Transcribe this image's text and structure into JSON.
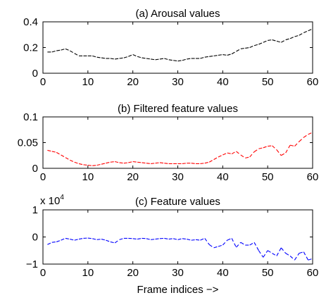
{
  "chart_data": [
    {
      "type": "line",
      "title": "(a) Arousal values",
      "xlim": [
        0,
        60
      ],
      "ylim": [
        0,
        0.4
      ],
      "xticks": [
        "0",
        "10",
        "20",
        "30",
        "40",
        "50",
        "60"
      ],
      "yticks": [
        "0",
        "0.2",
        "0.4"
      ],
      "line_style": "dashed",
      "color": "#000000",
      "series": [
        {
          "x": [
            1,
            2,
            3,
            4,
            5,
            6,
            7,
            8,
            9,
            10,
            11,
            12,
            13,
            14,
            15,
            16,
            17,
            18,
            19,
            20,
            21,
            22,
            23,
            24,
            25,
            26,
            27,
            28,
            29,
            30,
            31,
            32,
            33,
            34,
            35,
            36,
            37,
            38,
            39,
            40,
            41,
            42,
            43,
            44,
            45,
            46,
            47,
            48,
            49,
            50,
            51,
            52,
            53,
            54,
            55,
            56,
            57,
            58,
            59,
            60
          ],
          "values": [
            0.165,
            0.165,
            0.175,
            0.18,
            0.19,
            0.175,
            0.155,
            0.135,
            0.135,
            0.135,
            0.135,
            0.125,
            0.12,
            0.115,
            0.115,
            0.11,
            0.115,
            0.12,
            0.13,
            0.145,
            0.13,
            0.12,
            0.115,
            0.11,
            0.105,
            0.11,
            0.115,
            0.105,
            0.1,
            0.095,
            0.1,
            0.11,
            0.115,
            0.115,
            0.115,
            0.125,
            0.13,
            0.135,
            0.14,
            0.145,
            0.14,
            0.15,
            0.17,
            0.19,
            0.195,
            0.2,
            0.215,
            0.225,
            0.24,
            0.255,
            0.26,
            0.25,
            0.24,
            0.26,
            0.27,
            0.285,
            0.295,
            0.315,
            0.33,
            0.345
          ]
        }
      ]
    },
    {
      "type": "line",
      "title": "(b) Filtered feature values",
      "xlim": [
        0,
        60
      ],
      "ylim": [
        0,
        0.1
      ],
      "xticks": [
        "0",
        "10",
        "20",
        "30",
        "40",
        "50",
        "60"
      ],
      "yticks": [
        "0",
        "0.05",
        "0.1"
      ],
      "line_style": "dashed",
      "color": "#ff0000",
      "series": [
        {
          "x": [
            1,
            2,
            3,
            4,
            5,
            6,
            7,
            8,
            9,
            10,
            11,
            12,
            13,
            14,
            15,
            16,
            17,
            18,
            19,
            20,
            21,
            22,
            23,
            24,
            25,
            26,
            27,
            28,
            29,
            30,
            31,
            32,
            33,
            34,
            35,
            36,
            37,
            38,
            39,
            40,
            41,
            42,
            43,
            44,
            45,
            46,
            47,
            48,
            49,
            50,
            51,
            52,
            53,
            54,
            55,
            56,
            57,
            58,
            59,
            60
          ],
          "values": [
            0.035,
            0.033,
            0.031,
            0.026,
            0.021,
            0.016,
            0.012,
            0.009,
            0.007,
            0.006,
            0.005,
            0.006,
            0.008,
            0.01,
            0.012,
            0.013,
            0.011,
            0.01,
            0.011,
            0.013,
            0.012,
            0.011,
            0.01,
            0.009,
            0.01,
            0.011,
            0.01,
            0.009,
            0.009,
            0.009,
            0.009,
            0.01,
            0.01,
            0.009,
            0.009,
            0.01,
            0.012,
            0.017,
            0.022,
            0.026,
            0.03,
            0.028,
            0.033,
            0.026,
            0.02,
            0.022,
            0.032,
            0.038,
            0.04,
            0.043,
            0.044,
            0.036,
            0.025,
            0.03,
            0.045,
            0.043,
            0.052,
            0.06,
            0.066,
            0.07
          ]
        }
      ]
    },
    {
      "type": "line",
      "title": "(c) Feature values",
      "xlim": [
        0,
        60
      ],
      "ylim": [
        -1,
        1
      ],
      "xticks": [
        "0",
        "10",
        "20",
        "30",
        "40",
        "50",
        "60"
      ],
      "yticks": [
        "−1",
        "0",
        "1"
      ],
      "y_multiplier": {
        "base": "x 10",
        "exponent": "4"
      },
      "xlabel": "Frame indices −>",
      "line_style": "dashed",
      "color": "#0000ff",
      "series": [
        {
          "x": [
            1,
            2,
            3,
            4,
            5,
            6,
            7,
            8,
            9,
            10,
            11,
            12,
            13,
            14,
            15,
            16,
            17,
            18,
            19,
            20,
            21,
            22,
            23,
            24,
            25,
            26,
            27,
            28,
            29,
            30,
            31,
            32,
            33,
            34,
            35,
            36,
            37,
            38,
            39,
            40,
            41,
            42,
            43,
            44,
            45,
            46,
            47,
            48,
            49,
            50,
            51,
            52,
            53,
            54,
            55,
            56,
            57,
            58,
            59,
            60
          ],
          "values": [
            -0.28,
            -0.2,
            -0.18,
            -0.12,
            -0.05,
            -0.08,
            -0.12,
            -0.08,
            -0.05,
            -0.04,
            -0.06,
            -0.1,
            -0.08,
            -0.12,
            -0.18,
            -0.22,
            -0.1,
            -0.05,
            -0.05,
            -0.06,
            -0.08,
            -0.05,
            -0.06,
            -0.1,
            -0.08,
            -0.06,
            -0.05,
            -0.08,
            -0.06,
            -0.1,
            -0.06,
            -0.08,
            -0.12,
            -0.1,
            -0.12,
            -0.05,
            -0.28,
            -0.4,
            -0.35,
            -0.3,
            -0.12,
            -0.05,
            -0.38,
            -0.2,
            -0.3,
            -0.3,
            -0.2,
            -0.5,
            -0.75,
            -0.5,
            -0.6,
            -0.7,
            -0.4,
            -0.6,
            -0.7,
            -0.85,
            -0.6,
            -0.55,
            -0.85,
            -0.8
          ]
        }
      ]
    }
  ]
}
